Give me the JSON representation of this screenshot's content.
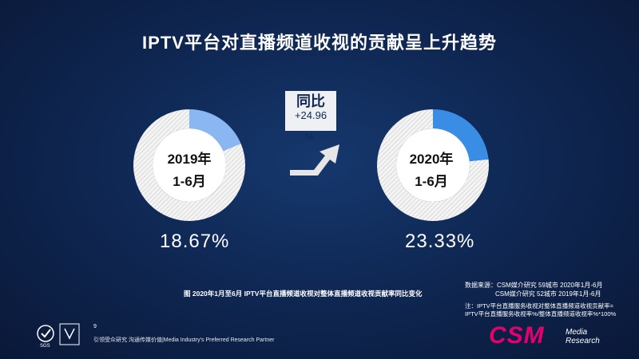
{
  "title": "IPTV平台对直播频道收视的贡献呈上升趋势",
  "yoy": {
    "label": "同比",
    "value": "+24.96",
    "unit": "%"
  },
  "caption": "图  2020年1月至6月 IPTV平台直播频道收视对整体直播频道收视贡献率同比变化",
  "source_lines": [
    "数据来源：CSM媒介研究 59城市 2020年1月-6月",
    "CSM媒介研究 52城市 2019年1月-6月"
  ],
  "note_lines": [
    "注：IPTV平台直播服务收视对整体直播频道收视贡献率=",
    "IPTV平台直播服务收视率%/整体直播频道收视率%*100%"
  ],
  "footer": {
    "page": "9",
    "tagline": "引领受众研究 沟通传媒价值|Media Industry's Preferred Research Partner",
    "brand": "CSM",
    "brand_sub1": "Media",
    "brand_sub2": "Research"
  },
  "chart_data": {
    "type": "pie",
    "charts": [
      {
        "period_year": "2019年",
        "period_months": "1-6月",
        "value": 18.67,
        "value_label": "18.67%",
        "color": "#8ab7f2"
      },
      {
        "period_year": "2020年",
        "period_months": "1-6月",
        "value": 23.33,
        "value_label": "23.33%",
        "color": "#3a8de4"
      }
    ],
    "remainder_color": "#e9e9e9"
  }
}
